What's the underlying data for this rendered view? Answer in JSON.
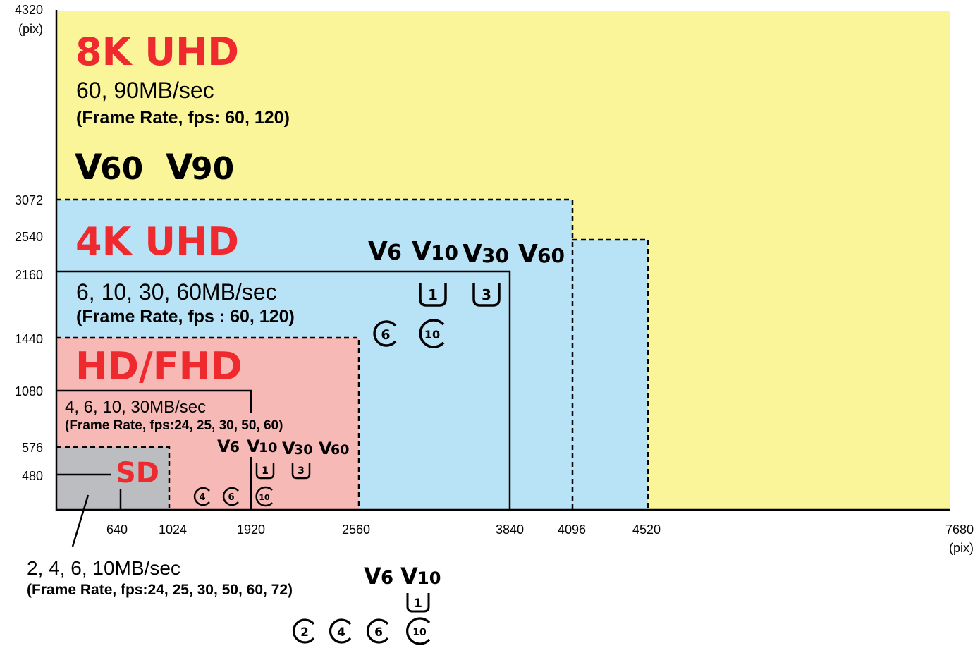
{
  "axes": {
    "y_unit": "(pix)",
    "x_unit": "(pix)",
    "y_ticks": [
      "4320",
      "3072",
      "2540",
      "2160",
      "1440",
      "1080",
      "576",
      "480"
    ],
    "x_ticks": [
      "640",
      "1024",
      "1920",
      "2560",
      "3840",
      "4096",
      "4520",
      "7680"
    ]
  },
  "colors": {
    "uhd8k": "#fbf599",
    "uhd4k": "#b8e3f6",
    "hd": "#f7b9b6",
    "sd": "#bcbdc0",
    "title_red": "#ee2a2e"
  },
  "regions": {
    "uhd8k": {
      "title": "8K UHD",
      "speed": "60, 90MB/sec",
      "frame_rate": "(Frame Rate, fps: 60, 120)",
      "video_classes": [
        "60",
        "90"
      ]
    },
    "uhd4k": {
      "title": "4K UHD",
      "speed": "6, 10, 30, 60MB/sec",
      "frame_rate": "(Frame Rate, fps : 60, 120)",
      "video_classes": [
        "6",
        "10",
        "30",
        "60"
      ],
      "uhs_classes": [
        "1",
        "3"
      ],
      "speed_classes": [
        "6",
        "10"
      ]
    },
    "hd": {
      "title": "HD/FHD",
      "speed": "4, 6, 10, 30MB/sec",
      "frame_rate": "(Frame Rate, fps:24, 25, 30, 50, 60)",
      "video_classes": [
        "6",
        "10",
        "30",
        "60"
      ],
      "uhs_classes": [
        "1",
        "3"
      ],
      "speed_classes": [
        "4",
        "6",
        "10"
      ]
    },
    "sd": {
      "title": "SD",
      "speed": "2, 4, 6, 10MB/sec",
      "frame_rate": "(Frame Rate, fps:24, 25, 30, 50, 60, 72)",
      "video_classes": [
        "6",
        "10"
      ],
      "uhs_classes": [
        "1"
      ],
      "speed_classes": [
        "2",
        "4",
        "6",
        "10"
      ]
    }
  },
  "marks": {
    "video_prefix": "V"
  }
}
